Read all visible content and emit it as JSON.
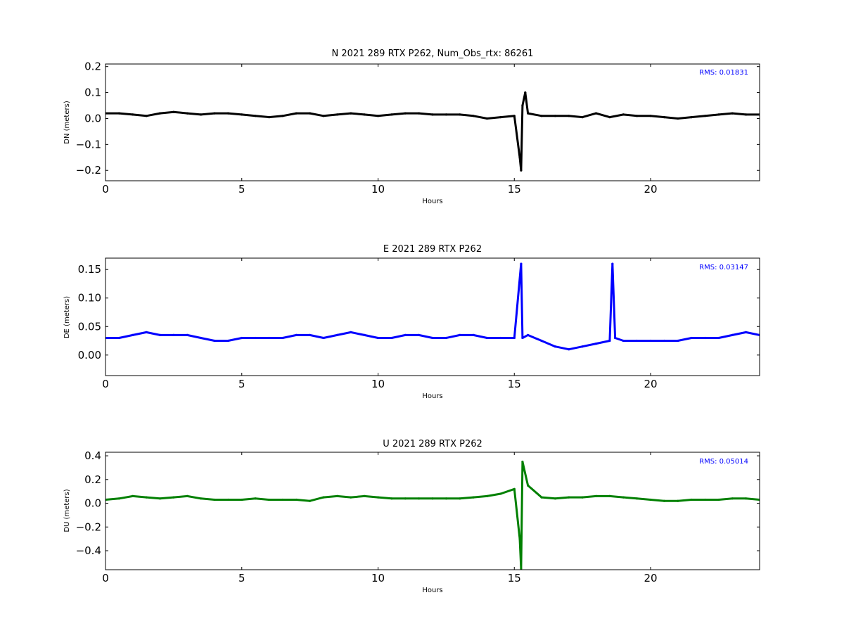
{
  "figure": {
    "background": "#ffffff"
  },
  "chart_data": [
    {
      "type": "scatter",
      "component": "N",
      "title": "N 2021 289 RTX  P262, Num_Obs_rtx: 86261",
      "xlabel": "Hours",
      "ylabel": "DN (meters)",
      "xlim": [
        0,
        24
      ],
      "ylim": [
        -0.24,
        0.21
      ],
      "xticks": [
        0,
        5,
        10,
        15,
        20
      ],
      "yticks": [
        0.2,
        0.1,
        0.0,
        -0.1,
        -0.2
      ],
      "xtick_labels": [
        "0",
        "5",
        "10",
        "15",
        "20"
      ],
      "ytick_labels": [
        "0.2",
        "0.1",
        "0.0",
        "−0.1",
        "−0.2"
      ],
      "color": "#000000",
      "rms_text": "RMS:  0.01831",
      "rms_color": "#0000ff",
      "series": [
        {
          "x": [
            0,
            0.5,
            1,
            1.5,
            2,
            2.5,
            3,
            3.5,
            4,
            4.5,
            5,
            5.5,
            6,
            6.5,
            7,
            7.5,
            8,
            8.5,
            9,
            9.5,
            10,
            10.5,
            11,
            11.5,
            12,
            12.5,
            13,
            13.5,
            14,
            14.5,
            15,
            15.2,
            15.25,
            15.3,
            15.4,
            15.5,
            16,
            16.5,
            17,
            17.5,
            18,
            18.5,
            19,
            19.5,
            20,
            20.5,
            21,
            21.5,
            22,
            22.5,
            23,
            23.5,
            24
          ],
          "y": [
            0.02,
            0.02,
            0.015,
            0.01,
            0.02,
            0.025,
            0.02,
            0.015,
            0.02,
            0.02,
            0.015,
            0.01,
            0.005,
            0.01,
            0.02,
            0.02,
            0.01,
            0.015,
            0.02,
            0.015,
            0.01,
            0.015,
            0.02,
            0.02,
            0.015,
            0.015,
            0.015,
            0.01,
            0.0,
            0.005,
            0.01,
            -0.15,
            -0.2,
            0.05,
            0.1,
            0.02,
            0.01,
            0.01,
            0.01,
            0.005,
            0.02,
            0.005,
            0.015,
            0.01,
            0.01,
            0.005,
            0.0,
            0.005,
            0.01,
            0.015,
            0.02,
            0.015,
            0.015
          ]
        }
      ]
    },
    {
      "type": "scatter",
      "component": "E",
      "title": "E 2021 289 RTX  P262",
      "xlabel": "Hours",
      "ylabel": "DE (meters)",
      "xlim": [
        0,
        24
      ],
      "ylim": [
        -0.036,
        0.17
      ],
      "xticks": [
        0,
        5,
        10,
        15,
        20
      ],
      "yticks": [
        0.15,
        0.1,
        0.05,
        0.0
      ],
      "xtick_labels": [
        "0",
        "5",
        "10",
        "15",
        "20"
      ],
      "ytick_labels": [
        "0.15",
        "0.10",
        "0.05",
        "0.00"
      ],
      "color": "#0000ff",
      "rms_text": "RMS:  0.03147",
      "rms_color": "#0000ff",
      "series": [
        {
          "x": [
            0,
            0.5,
            1,
            1.5,
            2,
            2.5,
            3,
            3.5,
            4,
            4.5,
            5,
            5.5,
            6,
            6.5,
            7,
            7.5,
            8,
            8.5,
            9,
            9.5,
            10,
            10.5,
            11,
            11.5,
            12,
            12.5,
            13,
            13.5,
            14,
            14.5,
            15,
            15.25,
            15.3,
            15.5,
            16,
            16.5,
            17,
            17.5,
            18,
            18.5,
            18.6,
            18.7,
            19,
            19.5,
            20,
            20.5,
            21,
            21.5,
            22,
            22.5,
            23,
            23.5,
            24
          ],
          "y": [
            0.03,
            0.03,
            0.035,
            0.04,
            0.035,
            0.035,
            0.035,
            0.03,
            0.025,
            0.025,
            0.03,
            0.03,
            0.03,
            0.03,
            0.035,
            0.035,
            0.03,
            0.035,
            0.04,
            0.035,
            0.03,
            0.03,
            0.035,
            0.035,
            0.03,
            0.03,
            0.035,
            0.035,
            0.03,
            0.03,
            0.03,
            0.16,
            0.03,
            0.035,
            0.025,
            0.015,
            0.01,
            0.015,
            0.02,
            0.025,
            0.16,
            0.03,
            0.025,
            0.025,
            0.025,
            0.025,
            0.025,
            0.03,
            0.03,
            0.03,
            0.035,
            0.04,
            0.035
          ]
        }
      ]
    },
    {
      "type": "scatter",
      "component": "U",
      "title": "U 2021 289 RTX  P262",
      "xlabel": "Hours",
      "ylabel": "DU (meters)",
      "xlim": [
        0,
        24
      ],
      "ylim": [
        -0.56,
        0.43
      ],
      "xticks": [
        0,
        5,
        10,
        15,
        20
      ],
      "yticks": [
        0.4,
        0.2,
        0.0,
        -0.2,
        -0.4
      ],
      "xtick_labels": [
        "0",
        "5",
        "10",
        "15",
        "20"
      ],
      "ytick_labels": [
        "0.4",
        "0.2",
        "0.0",
        "−0.2",
        "−0.4"
      ],
      "color": "#008000",
      "rms_text": "RMS:  0.05014",
      "rms_color": "#0000ff",
      "series": [
        {
          "x": [
            0,
            0.5,
            1,
            1.5,
            2,
            2.5,
            3,
            3.5,
            4,
            4.5,
            5,
            5.5,
            6,
            6.5,
            7,
            7.5,
            8,
            8.5,
            9,
            9.5,
            10,
            10.5,
            11,
            11.5,
            12,
            12.5,
            13,
            13.5,
            14,
            14.5,
            15,
            15.2,
            15.25,
            15.3,
            15.5,
            16,
            16.5,
            17,
            17.5,
            18,
            18.5,
            19,
            19.5,
            20,
            20.5,
            21,
            21.5,
            22,
            22.5,
            23,
            23.5,
            24
          ],
          "y": [
            0.03,
            0.04,
            0.06,
            0.05,
            0.04,
            0.05,
            0.06,
            0.04,
            0.03,
            0.03,
            0.03,
            0.04,
            0.03,
            0.03,
            0.03,
            0.02,
            0.05,
            0.06,
            0.05,
            0.06,
            0.05,
            0.04,
            0.04,
            0.04,
            0.04,
            0.04,
            0.04,
            0.05,
            0.06,
            0.08,
            0.12,
            -0.3,
            -0.55,
            0.35,
            0.15,
            0.05,
            0.04,
            0.05,
            0.05,
            0.06,
            0.06,
            0.05,
            0.04,
            0.03,
            0.02,
            0.02,
            0.03,
            0.03,
            0.03,
            0.04,
            0.04,
            0.03
          ]
        }
      ]
    }
  ]
}
